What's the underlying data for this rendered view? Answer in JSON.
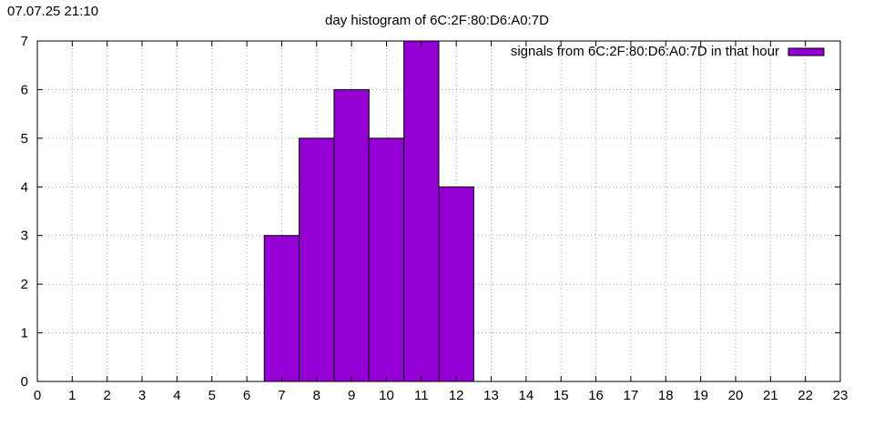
{
  "timestamp": "07.07.25 21:10",
  "chart_data": {
    "type": "bar",
    "title": "day histogram of 6C:2F:80:D6:A0:7D",
    "xlabel": "",
    "ylabel": "",
    "xlim": [
      0,
      23
    ],
    "ylim": [
      0,
      7
    ],
    "xticks": [
      0,
      1,
      2,
      3,
      4,
      5,
      6,
      7,
      8,
      9,
      10,
      11,
      12,
      13,
      14,
      15,
      16,
      17,
      18,
      19,
      20,
      21,
      22,
      23
    ],
    "yticks": [
      0,
      1,
      2,
      3,
      4,
      5,
      6,
      7
    ],
    "grid": true,
    "legend_position": "top-right",
    "series": [
      {
        "name": "signals from 6C:2F:80:D6:A0:7D in that hour",
        "color": "#9400d3",
        "x": [
          7,
          8,
          9,
          10,
          11,
          12
        ],
        "values": [
          3,
          5,
          6,
          5,
          7,
          4
        ]
      }
    ]
  }
}
